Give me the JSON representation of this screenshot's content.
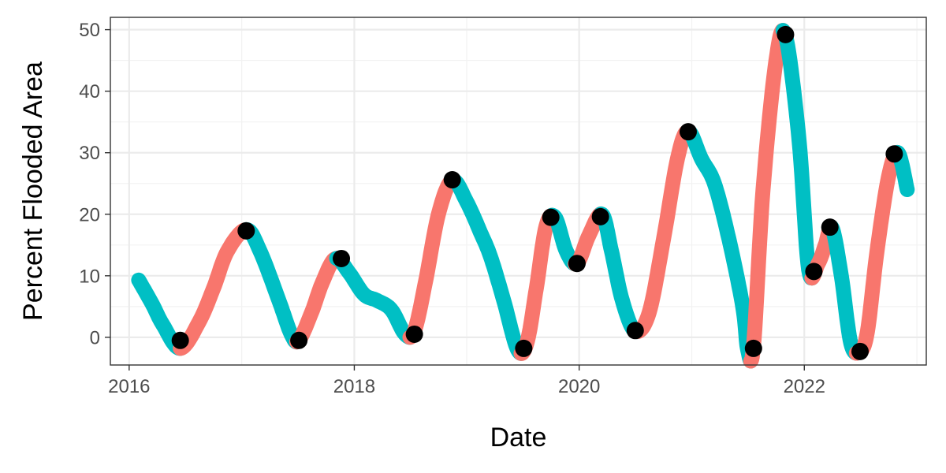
{
  "chart_data": {
    "type": "line",
    "xlabel": "Date",
    "ylabel": "Percent Flooded Area",
    "xlim": [
      "2015-11-01",
      "2023-02-01"
    ],
    "ylim": [
      -4.5,
      52
    ],
    "x_ticks": [
      "2016-01-01",
      "2018-01-01",
      "2020-01-01",
      "2022-01-01"
    ],
    "x_tick_labels": [
      "2016",
      "2018",
      "2020",
      "2022"
    ],
    "y_ticks": [
      0,
      10,
      20,
      30,
      40,
      50
    ],
    "y_tick_labels": [
      "0",
      "10",
      "20",
      "30",
      "40",
      "50"
    ],
    "grid": true,
    "legend": "none",
    "colors": {
      "rising": "#F8766D",
      "falling": "#00BFC4",
      "points": "#000000"
    },
    "curve": {
      "x": [
        "2016-02-01",
        "2016-03-15",
        "2016-04-20",
        "2016-06-15",
        "2016-08-15",
        "2016-10-01",
        "2016-11-15",
        "2017-01-15",
        "2017-03-01",
        "2017-05-01",
        "2017-06-10",
        "2017-07-05",
        "2017-08-15",
        "2017-09-20",
        "2017-11-01",
        "2017-12-15",
        "2018-02-01",
        "2018-03-15",
        "2018-05-01",
        "2018-06-15",
        "2018-07-15",
        "2018-08-20",
        "2018-10-01",
        "2018-11-15",
        "2019-01-01",
        "2019-02-15",
        "2019-03-20",
        "2019-05-01",
        "2019-06-15",
        "2019-07-15",
        "2019-08-15",
        "2019-09-15",
        "2019-10-15",
        "2019-11-20",
        "2019-12-25",
        "2020-02-01",
        "2020-03-15",
        "2020-04-15",
        "2020-05-20",
        "2020-07-01",
        "2020-08-15",
        "2020-10-01",
        "2020-11-15",
        "2020-12-20",
        "2021-02-01",
        "2021-03-15",
        "2021-05-01",
        "2021-06-15",
        "2021-07-01",
        "2021-07-20",
        "2021-08-20",
        "2021-10-01",
        "2021-11-01",
        "2021-12-15",
        "2022-01-15",
        "2022-02-15",
        "2022-03-10",
        "2022-04-01",
        "2022-05-01",
        "2022-06-01",
        "2022-07-01",
        "2022-07-25",
        "2022-08-25",
        "2022-10-01",
        "2022-11-01",
        "2022-12-01"
      ],
      "y": [
        9.3,
        5.5,
        2.0,
        -1.8,
        2.5,
        8.0,
        14.0,
        17.5,
        14.0,
        6.0,
        0.5,
        -0.5,
        4.0,
        9.0,
        12.8,
        10.5,
        7.0,
        6.0,
        4.5,
        0.5,
        1.0,
        9.0,
        20.0,
        25.5,
        22.0,
        17.0,
        13.0,
        6.0,
        -2.0,
        -1.0,
        8.0,
        18.0,
        19.5,
        14.0,
        12.0,
        16.5,
        20.0,
        14.0,
        6.0,
        1.0,
        4.0,
        16.0,
        29.0,
        33.5,
        29.0,
        25.0,
        16.0,
        5.0,
        -2.0,
        -1.5,
        24.0,
        45.0,
        49.0,
        32.0,
        11.0,
        12.0,
        15.0,
        17.8,
        10.0,
        -1.0,
        -2.3,
        1.0,
        14.0,
        26.0,
        30.0,
        24.0
      ]
    },
    "points": {
      "x": [
        "2016-06-15",
        "2017-01-15",
        "2017-07-05",
        "2017-11-20",
        "2018-07-15",
        "2018-11-15",
        "2019-07-05",
        "2019-10-01",
        "2019-12-25",
        "2020-03-10",
        "2020-07-01",
        "2020-12-20",
        "2021-07-20",
        "2021-11-01",
        "2022-02-01",
        "2022-03-25",
        "2022-07-01",
        "2022-10-20"
      ],
      "y": [
        -0.5,
        17.3,
        -0.5,
        12.8,
        0.5,
        25.6,
        -1.8,
        19.5,
        12.0,
        19.6,
        1.1,
        33.4,
        -1.8,
        49.2,
        10.7,
        17.9,
        -2.3,
        29.8
      ]
    }
  }
}
